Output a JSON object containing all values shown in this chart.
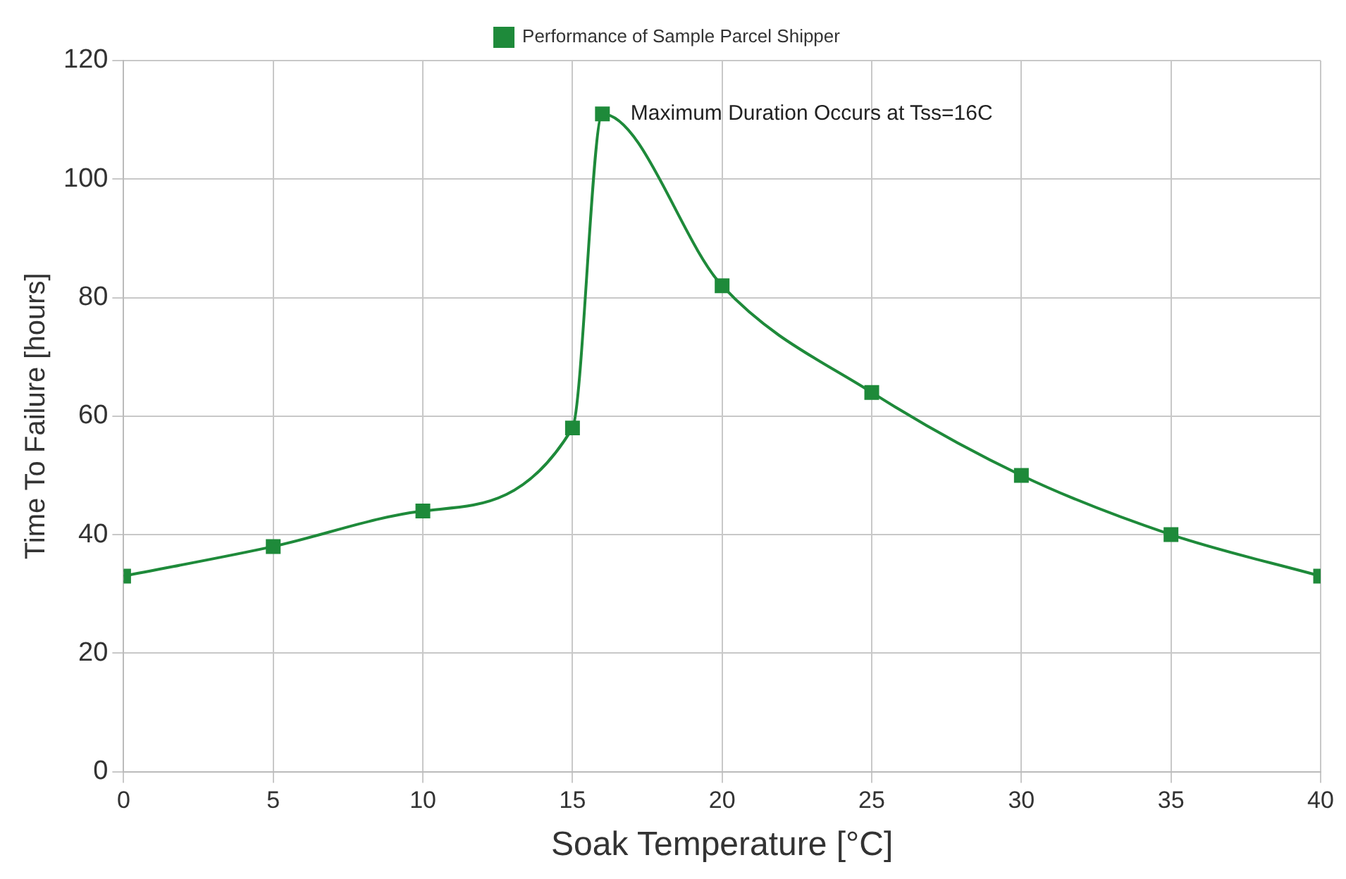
{
  "chart_data": {
    "type": "line",
    "xlabel": "Soak Temperature [°C]",
    "ylabel": "Time To Failure [hours]",
    "x": [
      0,
      5,
      10,
      15,
      16,
      20,
      25,
      30,
      35,
      40
    ],
    "series": [
      {
        "name": "Performance of Sample Parcel Shipper",
        "color": "#1e8a3a",
        "values": [
          33,
          38,
          44,
          58,
          111,
          82,
          64,
          50,
          40,
          33
        ]
      }
    ],
    "xlim": [
      0,
      40
    ],
    "xticks": [
      0,
      5,
      10,
      15,
      20,
      25,
      30,
      35,
      40
    ],
    "ylim": [
      0,
      120
    ],
    "yticks": [
      0,
      20,
      40,
      60,
      80,
      100,
      120
    ],
    "annotations": [
      {
        "text": "Maximum Duration Occurs at Tss=16C",
        "x": 16,
        "y": 111
      }
    ],
    "grid": true,
    "legend": "top",
    "marker": "square",
    "line_style": "solid"
  }
}
